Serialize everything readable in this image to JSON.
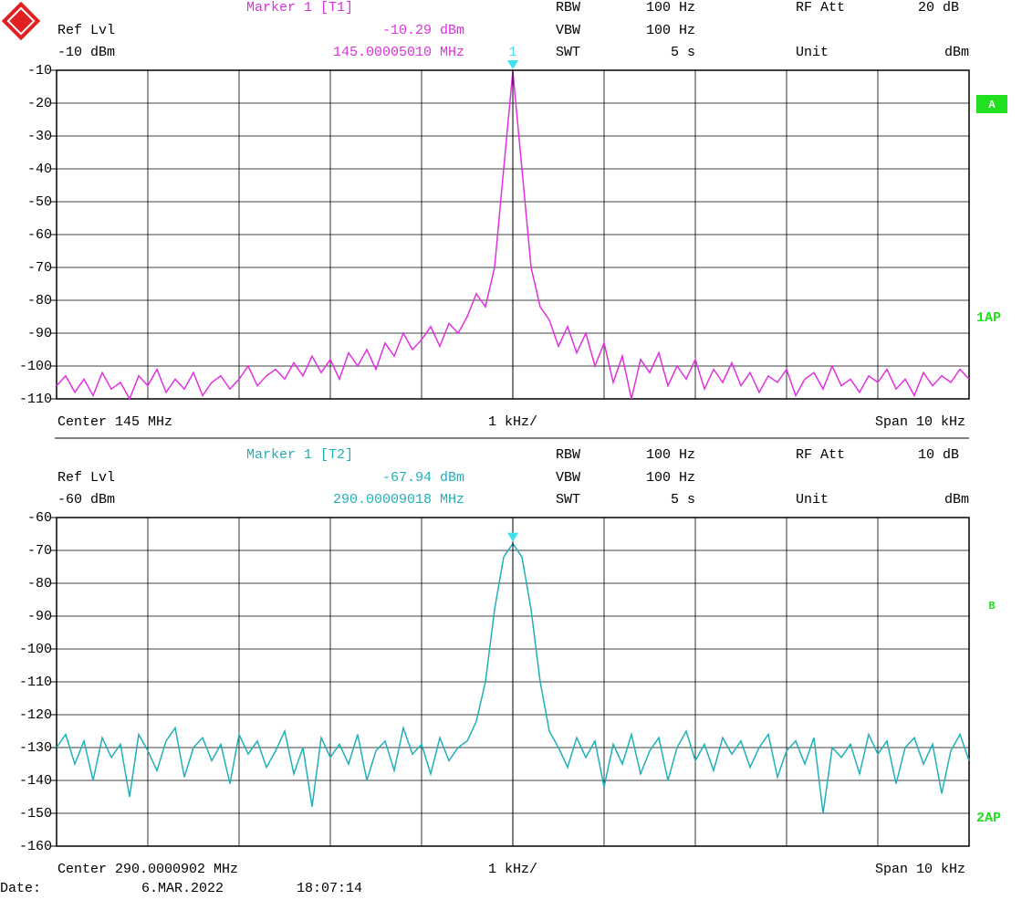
{
  "chart_data": [
    {
      "type": "line",
      "color": "#e030e0",
      "marker_color": "#40e0f0",
      "grid": true,
      "header": {
        "marker_title": "Marker 1 [T1]",
        "marker_level": "-10.29 dBm",
        "marker_freq": "145.00005010 MHz",
        "ref_lvl_label": "Ref Lvl",
        "ref_lvl": "-10 dBm",
        "rbw_label": "RBW",
        "rbw": "100 Hz",
        "vbw_label": "VBW",
        "vbw": "100 Hz",
        "swt_label": "SWT",
        "swt": "5 s",
        "rf_att_label": "RF Att",
        "rf_att": "20 dB",
        "unit_label": "Unit",
        "unit": "dBm"
      },
      "marker_number": "1",
      "trace_label": "A",
      "side_label": "1AP",
      "footer": {
        "center": "Center 145 MHz",
        "per_div": "1 kHz/",
        "span": "Span 10 kHz"
      },
      "ylim": [
        -110,
        -10
      ],
      "yticks": [
        -10,
        -20,
        -30,
        -40,
        -50,
        -60,
        -70,
        -80,
        -90,
        -100,
        -110
      ],
      "values": [
        -106,
        -103,
        -108,
        -104,
        -109,
        -102,
        -107,
        -105,
        -110,
        -103,
        -106,
        -101,
        -108,
        -104,
        -107,
        -102,
        -109,
        -105,
        -103,
        -107,
        -104,
        -100,
        -106,
        -103,
        -101,
        -104,
        -99,
        -103,
        -97,
        -102,
        -98,
        -104,
        -96,
        -100,
        -95,
        -101,
        -93,
        -97,
        -90,
        -95,
        -92,
        -88,
        -94,
        -87,
        -90,
        -85,
        -78,
        -82,
        -70,
        -40,
        -10.29,
        -40,
        -70,
        -82,
        -86,
        -94,
        -88,
        -96,
        -90,
        -100,
        -93,
        -105,
        -97,
        -110,
        -98,
        -102,
        -96,
        -106,
        -100,
        -104,
        -98,
        -107,
        -101,
        -105,
        -99,
        -106,
        -102,
        -108,
        -103,
        -105,
        -101,
        -109,
        -104,
        -102,
        -107,
        -100,
        -106,
        -104,
        -108,
        -103,
        -105,
        -101,
        -107,
        -104,
        -109,
        -102,
        -106,
        -103,
        -105,
        -101,
        -104
      ]
    },
    {
      "type": "line",
      "color": "#20b0b8",
      "marker_color": "#40e0f0",
      "grid": true,
      "header": {
        "marker_title": "Marker 1 [T2]",
        "marker_level": "-67.94 dBm",
        "marker_freq": "290.00009018 MHz",
        "ref_lvl_label": "Ref Lvl",
        "ref_lvl": "-60 dBm",
        "rbw_label": "RBW",
        "rbw": "100 Hz",
        "vbw_label": "VBW",
        "vbw": "100 Hz",
        "swt_label": "SWT",
        "swt": "5 s",
        "rf_att_label": "RF Att",
        "rf_att": "10 dB",
        "unit_label": "Unit",
        "unit": "dBm"
      },
      "trace_label": "B",
      "side_label": "2AP",
      "footer": {
        "center": "Center 290.0000902 MHz",
        "per_div": "1 kHz/",
        "span": "Span 10 kHz"
      },
      "ylim": [
        -160,
        -60
      ],
      "yticks": [
        -60,
        -70,
        -80,
        -90,
        -100,
        -110,
        -120,
        -130,
        -140,
        -150,
        -160
      ],
      "values": [
        -130,
        -126,
        -135,
        -128,
        -140,
        -127,
        -133,
        -129,
        -145,
        -126,
        -131,
        -137,
        -128,
        -124,
        -139,
        -130,
        -127,
        -134,
        -129,
        -141,
        -126,
        -132,
        -128,
        -136,
        -131,
        -125,
        -138,
        -130,
        -148,
        -127,
        -133,
        -129,
        -135,
        -126,
        -140,
        -131,
        -128,
        -137,
        -124,
        -132,
        -129,
        -138,
        -127,
        -134,
        -130,
        -128,
        -122,
        -110,
        -88,
        -72,
        -67.94,
        -72,
        -88,
        -110,
        -125,
        -130,
        -136,
        -127,
        -133,
        -128,
        -142,
        -129,
        -135,
        -126,
        -138,
        -131,
        -127,
        -140,
        -130,
        -125,
        -134,
        -129,
        -137,
        -127,
        -132,
        -128,
        -136,
        -130,
        -126,
        -139,
        -131,
        -128,
        -135,
        -127,
        -150,
        -130,
        -133,
        -129,
        -138,
        -126,
        -132,
        -128,
        -141,
        -130,
        -127,
        -135,
        -129,
        -144,
        -131,
        -126,
        -134
      ]
    }
  ],
  "date": {
    "label": "Date:",
    "date": "6.MAR.2022",
    "time": "18:07:14"
  }
}
